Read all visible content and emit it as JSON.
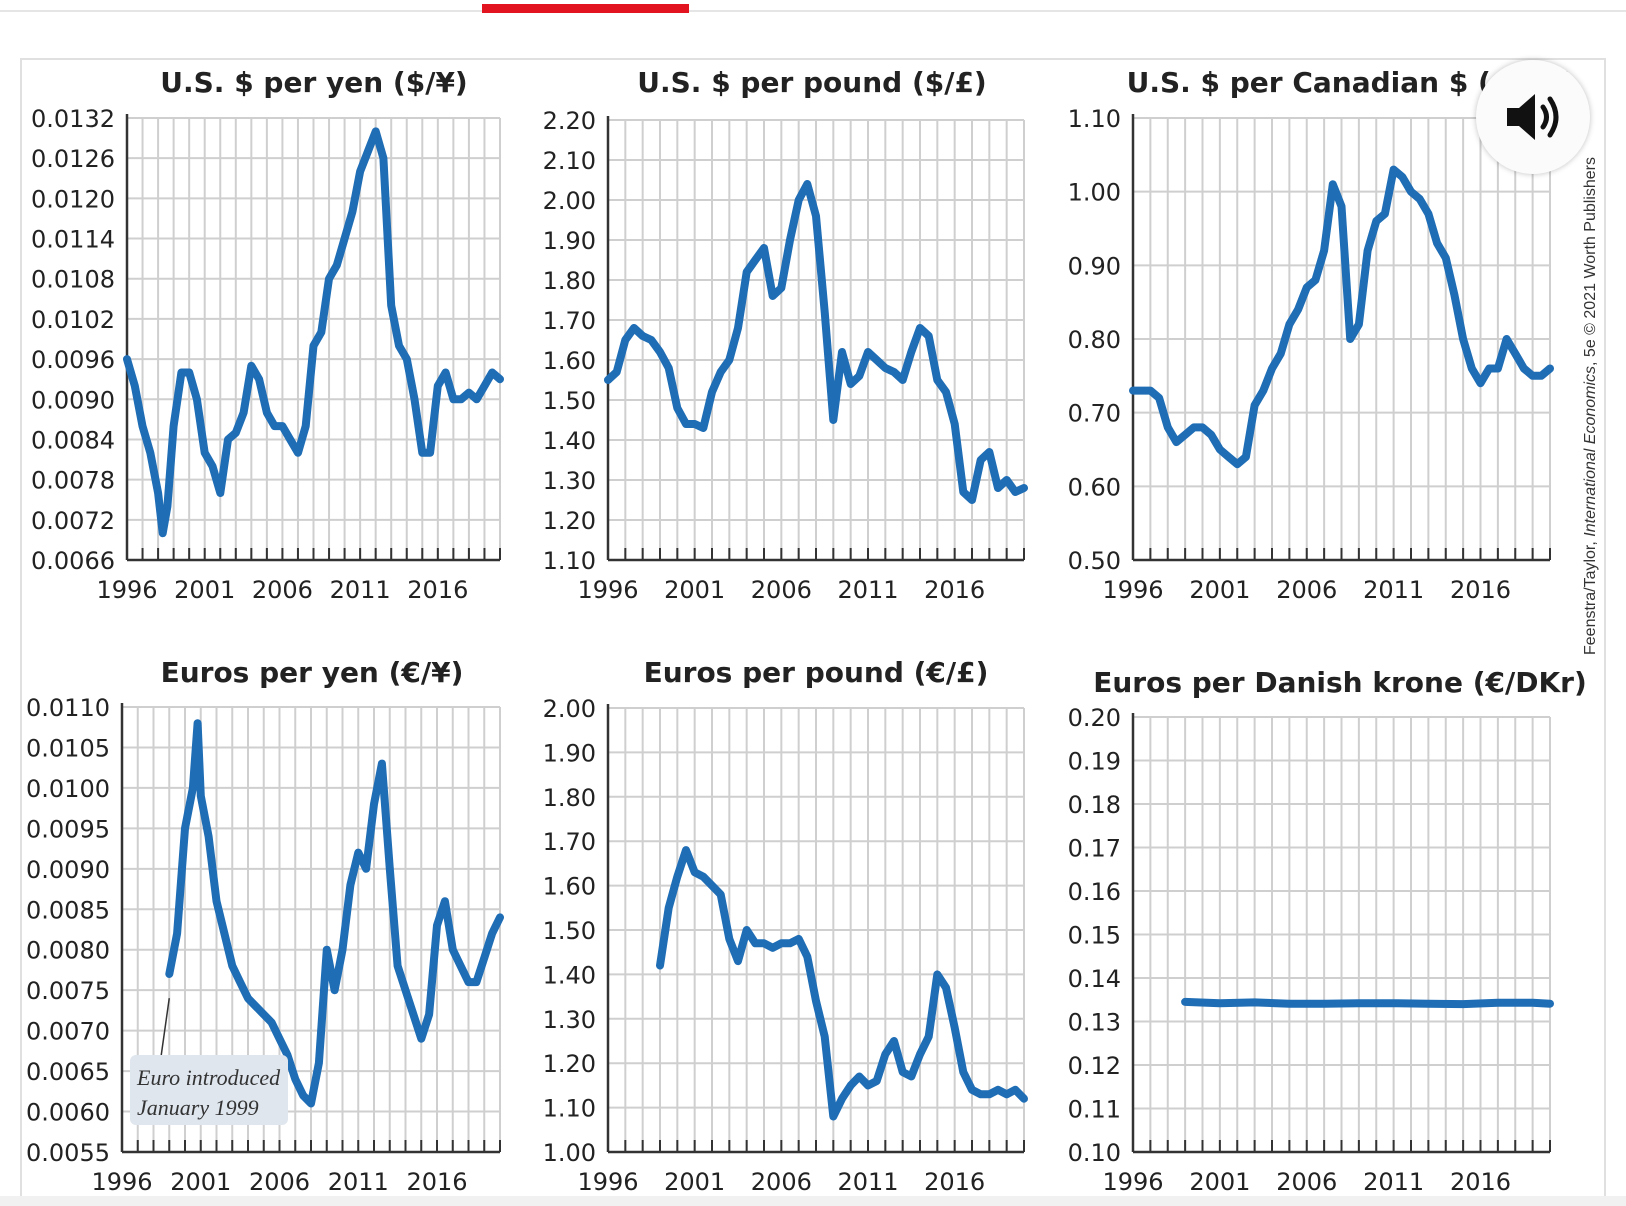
{
  "credit": {
    "prefix": "Feenstra/Taylor, ",
    "book": "International Economics",
    "suffix": ", 5e © 2021 Worth Publishers"
  },
  "colors": {
    "line": "#1f6db5",
    "grid": "#cfcfcf",
    "accent": "#e1141f"
  },
  "icons": {
    "audio": "speaker-icon"
  },
  "chart_data": [
    {
      "type": "line",
      "title": "U.S. $ per yen ($/¥)",
      "ylim": [
        0.0066,
        0.0132
      ],
      "yticks": [
        "0.0132",
        "0.0126",
        "0.0120",
        "0.0114",
        "0.0108",
        "0.0102",
        "0.0096",
        "0.0090",
        "0.0084",
        "0.0078",
        "0.0072",
        "0.0066"
      ],
      "xlim": [
        1996,
        2020
      ],
      "xticks": [
        "1996",
        "2001",
        "2006",
        "2011",
        "2016"
      ],
      "series": [
        {
          "x": [
            1996,
            1996.5,
            1997,
            1997.5,
            1998,
            1998.3,
            1998.6,
            1999,
            1999.5,
            2000,
            2000.5,
            2001,
            2001.5,
            2002,
            2002.5,
            2003,
            2003.5,
            2004,
            2004.5,
            2005,
            2005.5,
            2006,
            2006.5,
            2007,
            2007.5,
            2008,
            2008.5,
            2009,
            2009.5,
            2010,
            2010.5,
            2011,
            2011.5,
            2012,
            2012.5,
            2013,
            2013.5,
            2014,
            2014.5,
            2015,
            2015.5,
            2016,
            2016.5,
            2017,
            2017.5,
            2018,
            2018.5,
            2019,
            2019.5,
            2020
          ],
          "y": [
            0.0096,
            0.0092,
            0.0086,
            0.0082,
            0.0076,
            0.007,
            0.0074,
            0.0086,
            0.0094,
            0.0094,
            0.009,
            0.0082,
            0.008,
            0.0076,
            0.0084,
            0.0085,
            0.0088,
            0.0095,
            0.0093,
            0.0088,
            0.0086,
            0.0086,
            0.0084,
            0.0082,
            0.0086,
            0.0098,
            0.01,
            0.0108,
            0.011,
            0.0114,
            0.0118,
            0.0124,
            0.0127,
            0.013,
            0.0126,
            0.0104,
            0.0098,
            0.0096,
            0.009,
            0.0082,
            0.0082,
            0.0092,
            0.0094,
            0.009,
            0.009,
            0.0091,
            0.009,
            0.0092,
            0.0094,
            0.0093
          ]
        }
      ]
    },
    {
      "type": "line",
      "title": "U.S. $ per pound ($/£)",
      "ylim": [
        1.1,
        2.2
      ],
      "yticks": [
        "2.20",
        "2.10",
        "2.00",
        "1.90",
        "1.80",
        "1.70",
        "1.60",
        "1.50",
        "1.40",
        "1.30",
        "1.20",
        "1.10"
      ],
      "xlim": [
        1996,
        2020
      ],
      "xticks": [
        "1996",
        "2001",
        "2006",
        "2011",
        "2016"
      ],
      "series": [
        {
          "x": [
            1996,
            1996.5,
            1997,
            1997.5,
            1998,
            1998.5,
            1999,
            1999.5,
            2000,
            2000.5,
            2001,
            2001.5,
            2002,
            2002.5,
            2003,
            2003.5,
            2004,
            2004.5,
            2005,
            2005.5,
            2006,
            2006.5,
            2007,
            2007.5,
            2008,
            2008.5,
            2009,
            2009.5,
            2010,
            2010.5,
            2011,
            2011.5,
            2012,
            2012.5,
            2013,
            2013.5,
            2014,
            2014.5,
            2015,
            2015.5,
            2016,
            2016.5,
            2017,
            2017.5,
            2018,
            2018.5,
            2019,
            2019.5,
            2020
          ],
          "y": [
            1.55,
            1.57,
            1.65,
            1.68,
            1.66,
            1.65,
            1.62,
            1.58,
            1.48,
            1.44,
            1.44,
            1.43,
            1.52,
            1.57,
            1.6,
            1.68,
            1.82,
            1.85,
            1.88,
            1.76,
            1.78,
            1.9,
            2.0,
            2.04,
            1.96,
            1.72,
            1.45,
            1.62,
            1.54,
            1.56,
            1.62,
            1.6,
            1.58,
            1.57,
            1.55,
            1.62,
            1.68,
            1.66,
            1.55,
            1.52,
            1.44,
            1.27,
            1.25,
            1.35,
            1.37,
            1.28,
            1.3,
            1.27,
            1.28
          ]
        }
      ]
    },
    {
      "type": "line",
      "title": "U.S. $ per Canadian $ ($/C$)",
      "ylim": [
        0.5,
        1.1
      ],
      "yticks": [
        "1.10",
        "1.00",
        "0.90",
        "0.80",
        "0.70",
        "0.60",
        "0.50"
      ],
      "xlim": [
        1996,
        2020
      ],
      "xticks": [
        "1996",
        "2001",
        "2006",
        "2011",
        "2016"
      ],
      "series": [
        {
          "x": [
            1996,
            1996.5,
            1997,
            1997.5,
            1998,
            1998.5,
            1999,
            1999.5,
            2000,
            2000.5,
            2001,
            2001.5,
            2002,
            2002.5,
            2003,
            2003.5,
            2004,
            2004.5,
            2005,
            2005.5,
            2006,
            2006.5,
            2007,
            2007.5,
            2008,
            2008.5,
            2009,
            2009.5,
            2010,
            2010.5,
            2011,
            2011.5,
            2012,
            2012.5,
            2013,
            2013.5,
            2014,
            2014.5,
            2015,
            2015.5,
            2016,
            2016.5,
            2017,
            2017.5,
            2018,
            2018.5,
            2019,
            2019.5,
            2020
          ],
          "y": [
            0.73,
            0.73,
            0.73,
            0.72,
            0.68,
            0.66,
            0.67,
            0.68,
            0.68,
            0.67,
            0.65,
            0.64,
            0.63,
            0.64,
            0.71,
            0.73,
            0.76,
            0.78,
            0.82,
            0.84,
            0.87,
            0.88,
            0.92,
            1.01,
            0.98,
            0.8,
            0.82,
            0.92,
            0.96,
            0.97,
            1.03,
            1.02,
            1.0,
            0.99,
            0.97,
            0.93,
            0.91,
            0.86,
            0.8,
            0.76,
            0.74,
            0.76,
            0.76,
            0.8,
            0.78,
            0.76,
            0.75,
            0.75,
            0.76
          ]
        }
      ]
    },
    {
      "type": "line",
      "title": "Euros per yen (€/¥)",
      "ylim": [
        0.0055,
        0.011
      ],
      "yticks": [
        "0.0110",
        "0.0105",
        "0.0100",
        "0.0095",
        "0.0090",
        "0.0085",
        "0.0080",
        "0.0075",
        "0.0070",
        "0.0065",
        "0.0060",
        "0.0055"
      ],
      "xlim": [
        1996,
        2020
      ],
      "xticks": [
        "1996",
        "2001",
        "2006",
        "2011",
        "2016"
      ],
      "annotation": {
        "line1": "Euro introduced",
        "line2": "January 1999"
      },
      "series": [
        {
          "x": [
            1999,
            1999.5,
            2000,
            2000.5,
            2000.8,
            2001,
            2001.5,
            2002,
            2002.5,
            2003,
            2003.5,
            2004,
            2004.5,
            2005,
            2005.5,
            2006,
            2006.5,
            2007,
            2007.5,
            2008,
            2008.5,
            2009,
            2009.5,
            2010,
            2010.5,
            2011,
            2011.5,
            2012,
            2012.5,
            2013,
            2013.5,
            2014,
            2014.5,
            2015,
            2015.5,
            2016,
            2016.5,
            2017,
            2017.5,
            2018,
            2018.5,
            2019,
            2019.5,
            2020
          ],
          "y": [
            0.0077,
            0.0082,
            0.0095,
            0.01,
            0.0108,
            0.0099,
            0.0094,
            0.0086,
            0.0082,
            0.0078,
            0.0076,
            0.0074,
            0.0073,
            0.0072,
            0.0071,
            0.0069,
            0.0067,
            0.0064,
            0.0062,
            0.0061,
            0.0066,
            0.008,
            0.0075,
            0.008,
            0.0088,
            0.0092,
            0.009,
            0.0098,
            0.0103,
            0.009,
            0.0078,
            0.0075,
            0.0072,
            0.0069,
            0.0072,
            0.0083,
            0.0086,
            0.008,
            0.0078,
            0.0076,
            0.0076,
            0.0079,
            0.0082,
            0.0084
          ]
        }
      ]
    },
    {
      "type": "line",
      "title": "Euros per pound (€/£)",
      "ylim": [
        1.0,
        2.0
      ],
      "yticks": [
        "2.00",
        "1.90",
        "1.80",
        "1.70",
        "1.60",
        "1.50",
        "1.40",
        "1.30",
        "1.20",
        "1.10",
        "1.00"
      ],
      "xlim": [
        1996,
        2020
      ],
      "xticks": [
        "1996",
        "2001",
        "2006",
        "2011",
        "2016"
      ],
      "series": [
        {
          "x": [
            1999,
            1999.5,
            2000,
            2000.5,
            2001,
            2001.5,
            2002,
            2002.5,
            2003,
            2003.5,
            2004,
            2004.5,
            2005,
            2005.5,
            2006,
            2006.5,
            2007,
            2007.5,
            2008,
            2008.5,
            2009,
            2009.5,
            2010,
            2010.5,
            2011,
            2011.5,
            2012,
            2012.5,
            2013,
            2013.5,
            2014,
            2014.5,
            2015,
            2015.5,
            2016,
            2016.5,
            2017,
            2017.5,
            2018,
            2018.5,
            2019,
            2019.5,
            2020
          ],
          "y": [
            1.42,
            1.55,
            1.62,
            1.68,
            1.63,
            1.62,
            1.6,
            1.58,
            1.48,
            1.43,
            1.5,
            1.47,
            1.47,
            1.46,
            1.47,
            1.47,
            1.48,
            1.44,
            1.34,
            1.26,
            1.08,
            1.12,
            1.15,
            1.17,
            1.15,
            1.16,
            1.22,
            1.25,
            1.18,
            1.17,
            1.22,
            1.26,
            1.4,
            1.37,
            1.28,
            1.18,
            1.14,
            1.13,
            1.13,
            1.14,
            1.13,
            1.14,
            1.12
          ]
        }
      ]
    },
    {
      "type": "line",
      "title": "Euros per Danish krone (€/DKr)",
      "ylim": [
        0.1,
        0.2
      ],
      "yticks": [
        "0.20",
        "0.19",
        "0.18",
        "0.17",
        "0.16",
        "0.15",
        "0.14",
        "0.13",
        "0.12",
        "0.11",
        "0.10"
      ],
      "xlim": [
        1996,
        2020
      ],
      "xticks": [
        "1996",
        "2001",
        "2006",
        "2011",
        "2016"
      ],
      "series": [
        {
          "x": [
            1999,
            2001,
            2003,
            2005,
            2007,
            2009,
            2011,
            2013,
            2015,
            2017,
            2019,
            2020
          ],
          "y": [
            0.1345,
            0.1342,
            0.1344,
            0.1341,
            0.1341,
            0.1342,
            0.1342,
            0.1341,
            0.134,
            0.1343,
            0.1343,
            0.1341
          ]
        }
      ]
    }
  ]
}
